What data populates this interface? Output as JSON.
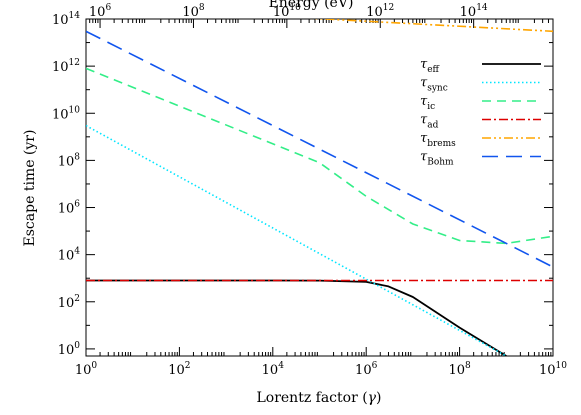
{
  "chart_data": {
    "type": "line",
    "xscale": "log",
    "yscale": "log",
    "xlim": [
      1,
      10000000000
    ],
    "ylim": [
      0.5,
      100000000000000
    ],
    "xlabel_main": "Lorentz factor (",
    "xlabel_symbol": "γ",
    "xlabel_close": ")",
    "ylabel": "Escape time (yr)",
    "top_xlabel": "Energy (eV)",
    "x_ticks": [
      {
        "base": "10",
        "exp": "0",
        "value": 1
      },
      {
        "base": "10",
        "exp": "2",
        "value": 100
      },
      {
        "base": "10",
        "exp": "4",
        "value": 10000
      },
      {
        "base": "10",
        "exp": "6",
        "value": 1000000
      },
      {
        "base": "10",
        "exp": "8",
        "value": 100000000
      },
      {
        "base": "10",
        "exp": "10",
        "value": 10000000000
      }
    ],
    "y_ticks": [
      {
        "base": "10",
        "exp": "0",
        "value": 1
      },
      {
        "base": "10",
        "exp": "2",
        "value": 100
      },
      {
        "base": "10",
        "exp": "4",
        "value": 10000
      },
      {
        "base": "10",
        "exp": "6",
        "value": 1000000
      },
      {
        "base": "10",
        "exp": "8",
        "value": 100000000
      },
      {
        "base": "10",
        "exp": "10",
        "value": 10000000000
      },
      {
        "base": "10",
        "exp": "12",
        "value": 1000000000000
      },
      {
        "base": "10",
        "exp": "14",
        "value": 100000000000000
      }
    ],
    "top_ticks": [
      {
        "base": "10",
        "exp": "6",
        "gamma": 2
      },
      {
        "base": "10",
        "exp": "8",
        "gamma": 200
      },
      {
        "base": "10",
        "exp": "10",
        "gamma": 20000
      },
      {
        "base": "10",
        "exp": "12",
        "gamma": 2000000
      },
      {
        "base": "10",
        "exp": "14",
        "gamma": 200000000
      }
    ],
    "legend_position": "upper-right",
    "series": [
      {
        "name": "τ",
        "sub": "eff",
        "color": "#000000",
        "dash": "solid",
        "points": [
          [
            1,
            800
          ],
          [
            10000,
            800
          ],
          [
            100000,
            790
          ],
          [
            1000000,
            700
          ],
          [
            3000000,
            450
          ],
          [
            10000000,
            160
          ],
          [
            100000000,
            8
          ],
          [
            1000000000,
            0.5
          ]
        ]
      },
      {
        "name": "τ",
        "sub": "sync",
        "color": "#00e5ff",
        "dash": "dotted",
        "points": [
          [
            1,
            3000000000
          ],
          [
            1000000000,
            0.5
          ]
        ]
      },
      {
        "name": "τ",
        "sub": "ic",
        "color": "#33ee88",
        "dash": "dashed",
        "points": [
          [
            1,
            800000000000
          ],
          [
            100000,
            80000000
          ],
          [
            1000000,
            3000000
          ],
          [
            10000000,
            200000
          ],
          [
            100000000,
            40000
          ],
          [
            1000000000,
            30000
          ],
          [
            10000000000,
            60000
          ]
        ]
      },
      {
        "name": "τ",
        "sub": "ad",
        "color": "#dd0000",
        "dash": "dashdot",
        "points": [
          [
            1,
            800
          ],
          [
            10000000000,
            800
          ]
        ]
      },
      {
        "name": "τ",
        "sub": "brems",
        "color": "#ffa500",
        "dash": "dashdotdot",
        "points": [
          [
            200,
            200000000000000
          ],
          [
            10000000000,
            30000000000000
          ]
        ]
      },
      {
        "name": "τ",
        "sub": "Bohm",
        "color": "#1155ee",
        "dash": "longdash",
        "points": [
          [
            1,
            30000000000000
          ],
          [
            10000000000,
            3000
          ]
        ]
      }
    ]
  }
}
